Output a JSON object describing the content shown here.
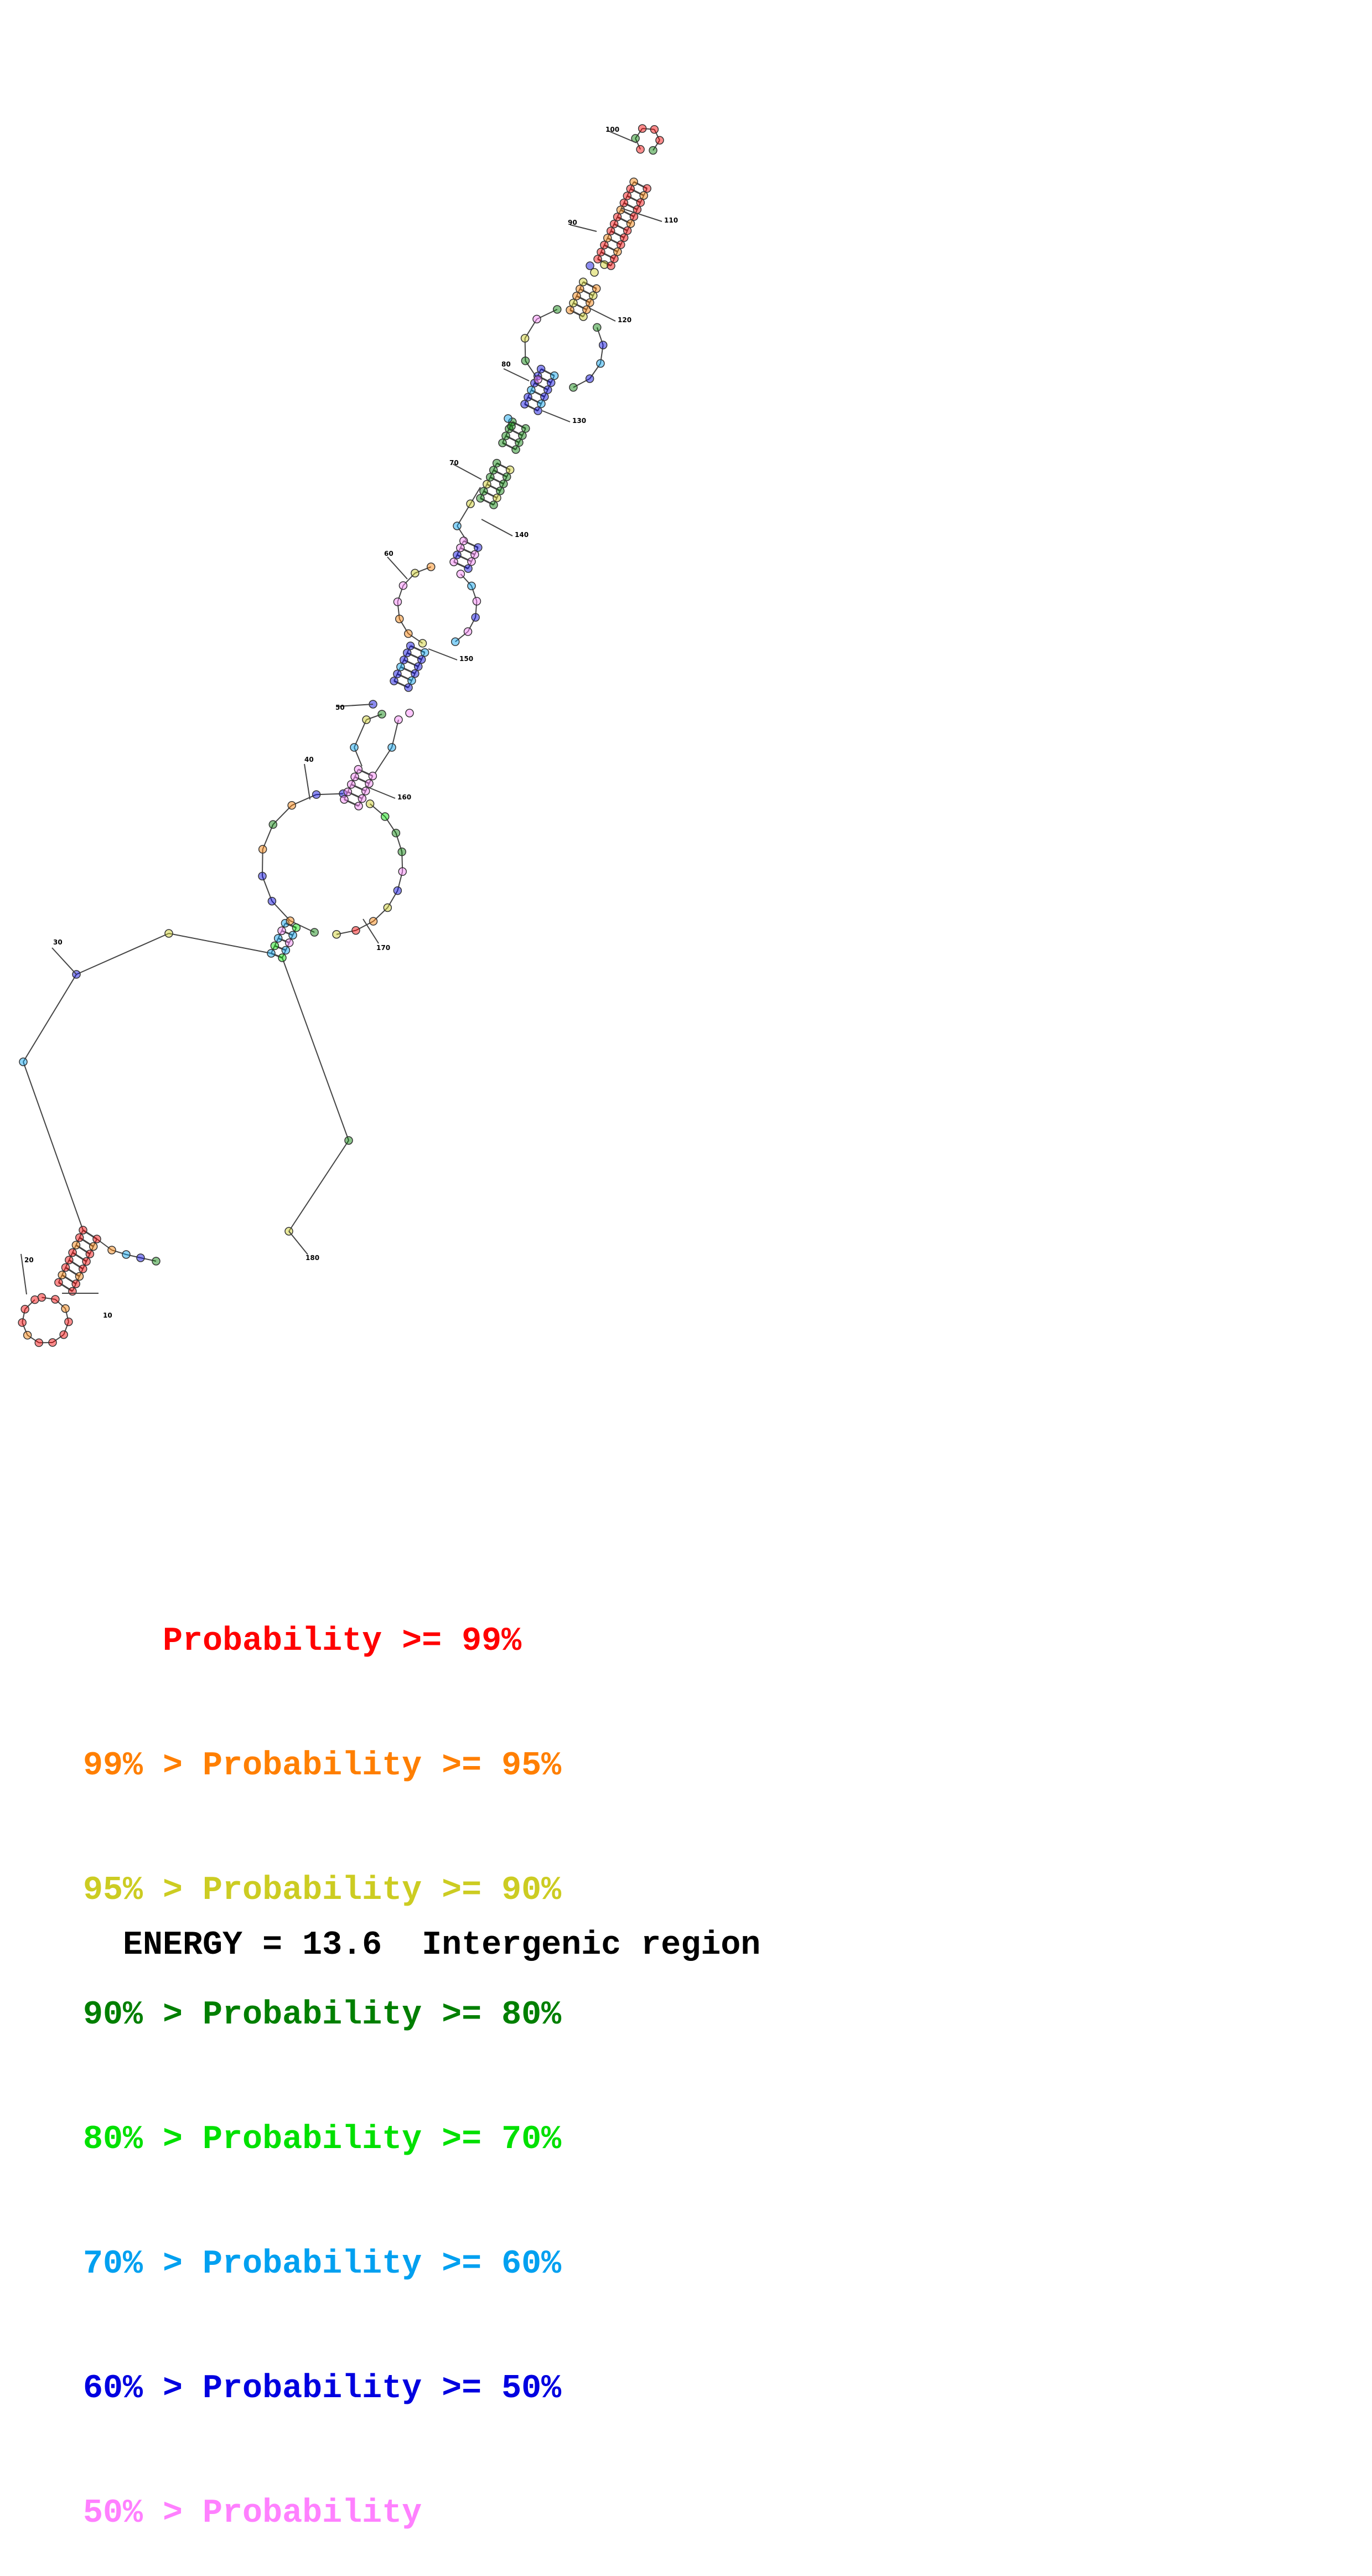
{
  "diagram": {
    "colors": {
      "p99": "#ff0000",
      "p95": "#ff7f00",
      "p90": "#cccc22",
      "p80": "#007f00",
      "p70": "#00e000",
      "p60": "#00a0f0",
      "p50": "#0000e0",
      "plow": "#ff80ff"
    },
    "position_labels": [
      "10",
      "20",
      "30",
      "40",
      "50",
      "60",
      "70",
      "80",
      "90",
      "100",
      "110",
      "120",
      "130",
      "140",
      "150",
      "160",
      "170",
      "180"
    ]
  },
  "legend": [
    {
      "prefix": "    ",
      "text": "Probability >= 99%",
      "color": "#ff0000"
    },
    {
      "prefix": "99% > ",
      "text": "Probability >= 95%",
      "color": "#ff7f00"
    },
    {
      "prefix": "95% > ",
      "text": "Probability >= 90%",
      "color": "#cccc22"
    },
    {
      "prefix": "90% > ",
      "text": "Probability >= 80%",
      "color": "#007f00"
    },
    {
      "prefix": "80% > ",
      "text": "Probability >= 70%",
      "color": "#00e000"
    },
    {
      "prefix": "70% > ",
      "text": "Probability >= 60%",
      "color": "#00a0f0"
    },
    {
      "prefix": "60% > ",
      "text": "Probability >= 50%",
      "color": "#0000e0"
    },
    {
      "prefix": "50% > ",
      "text": "Probability",
      "color": "#ff80ff"
    }
  ],
  "footer": {
    "energy": "ENERGY = 13.6",
    "region": "Intergenic region"
  }
}
